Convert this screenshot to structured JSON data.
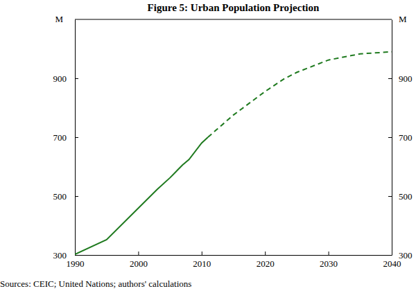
{
  "chart_data": {
    "type": "line",
    "title": "Figure 5: Urban Population Projection",
    "ylabel": "M",
    "source": "Sources:  CEIC; United Nations; authors' calculations",
    "x": [
      1990,
      1995,
      2000,
      2003,
      2005,
      2007,
      2008,
      2010,
      2011,
      2015,
      2020,
      2023,
      2025,
      2030,
      2035,
      2040
    ],
    "series": [
      {
        "color": "#1f7a1f",
        "line_style": "solid",
        "values": [
          302,
          352,
          459,
          523,
          562,
          606,
          624,
          680,
          700,
          null,
          null,
          null,
          null,
          null,
          null,
          null
        ]
      },
      {
        "color": "#1f7a1f",
        "line_style": "dashed",
        "values": [
          null,
          null,
          null,
          null,
          null,
          null,
          null,
          null,
          700,
          775,
          855,
          898,
          920,
          962,
          983,
          990
        ]
      }
    ],
    "xlim": [
      1990,
      2040
    ],
    "xticks": [
      1990,
      2000,
      2010,
      2020,
      2030,
      2040
    ],
    "ylim": [
      300,
      1100
    ],
    "yticks": [
      300,
      500,
      700,
      900
    ],
    "grid": false
  }
}
